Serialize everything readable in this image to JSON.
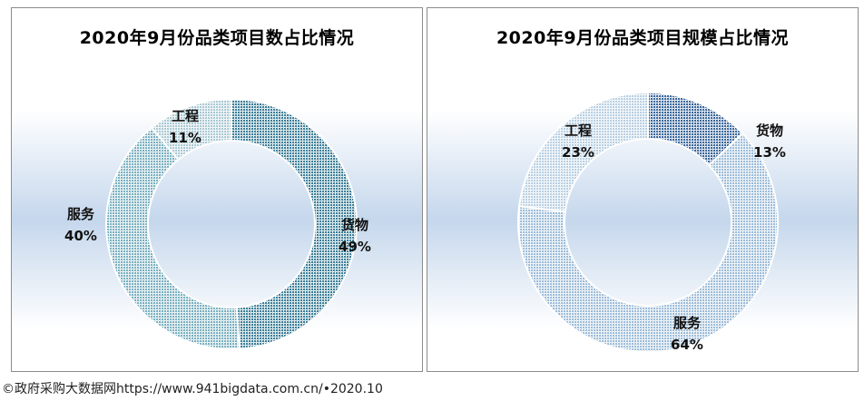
{
  "colors": {
    "goods": "#3d7f98",
    "services": "#7ab0c0",
    "engineering": "#a9c8d3",
    "goods2": "#3b679c",
    "services2": "#9dbcd8",
    "engineering2": "#b8cfe2"
  },
  "footer": "©政府采购大数据网https://www.941bigdata.com.cn/•2020.10",
  "chart_data": [
    {
      "type": "pie",
      "title": "2020年9月份品类项目数占比情况",
      "slices": [
        {
          "name": "货物",
          "value": 49,
          "label": "49%"
        },
        {
          "name": "服务",
          "value": 40,
          "label": "40%"
        },
        {
          "name": "工程",
          "value": 11,
          "label": "11%"
        }
      ]
    },
    {
      "type": "pie",
      "title": "2020年9月份品类项目规模占比情况",
      "slices": [
        {
          "name": "货物",
          "value": 13,
          "label": "13%"
        },
        {
          "name": "服务",
          "value": 64,
          "label": "64%"
        },
        {
          "name": "工程",
          "value": 23,
          "label": "23%"
        }
      ]
    }
  ]
}
